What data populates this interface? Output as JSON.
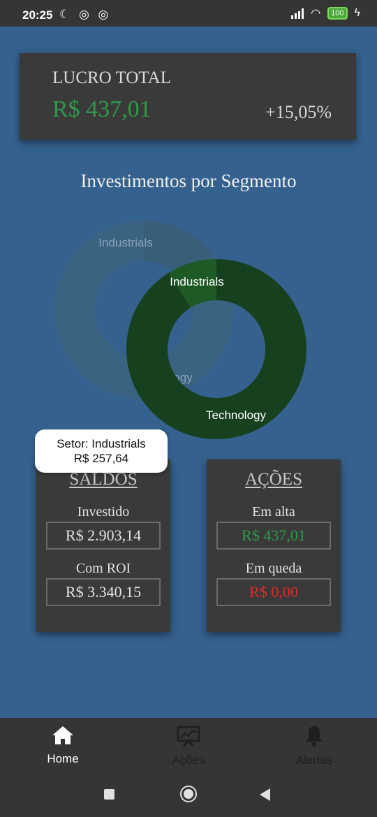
{
  "status": {
    "time": "20:25",
    "battery": "100"
  },
  "lucro": {
    "label": "LUCRO TOTAL",
    "value": "R$ 437,01",
    "percent": "+15,05%"
  },
  "chart_title": "Investimentos por Segmento",
  "chart_data": {
    "type": "pie",
    "categories": [
      "Industrials",
      "Technology"
    ],
    "values": [
      257.64,
      2645.5
    ],
    "colors": {
      "Technology": "#17401f",
      "Industrials": "#1e5a25"
    }
  },
  "chart_labels": {
    "industrials": "Industrials",
    "technology": "Technology",
    "ghost_industrials": "Industrials",
    "ghost_technology": "ogy"
  },
  "tooltip": {
    "line1": "Setor: Industrials",
    "line2": "R$ 257,64"
  },
  "saldos": {
    "title": "SALDOS",
    "investido_label": "Investido",
    "investido_value": "R$ 2.903,14",
    "roi_label": "Com ROI",
    "roi_value": "R$ 3.340,15"
  },
  "acoes": {
    "title": "AÇÕES",
    "alta_label": "Em alta",
    "alta_value": "R$ 437,01",
    "queda_label": "Em queda",
    "queda_value": "R$ 0,00"
  },
  "nav": {
    "home": "Home",
    "acoes": "Ações",
    "alertas": "Alertas"
  }
}
